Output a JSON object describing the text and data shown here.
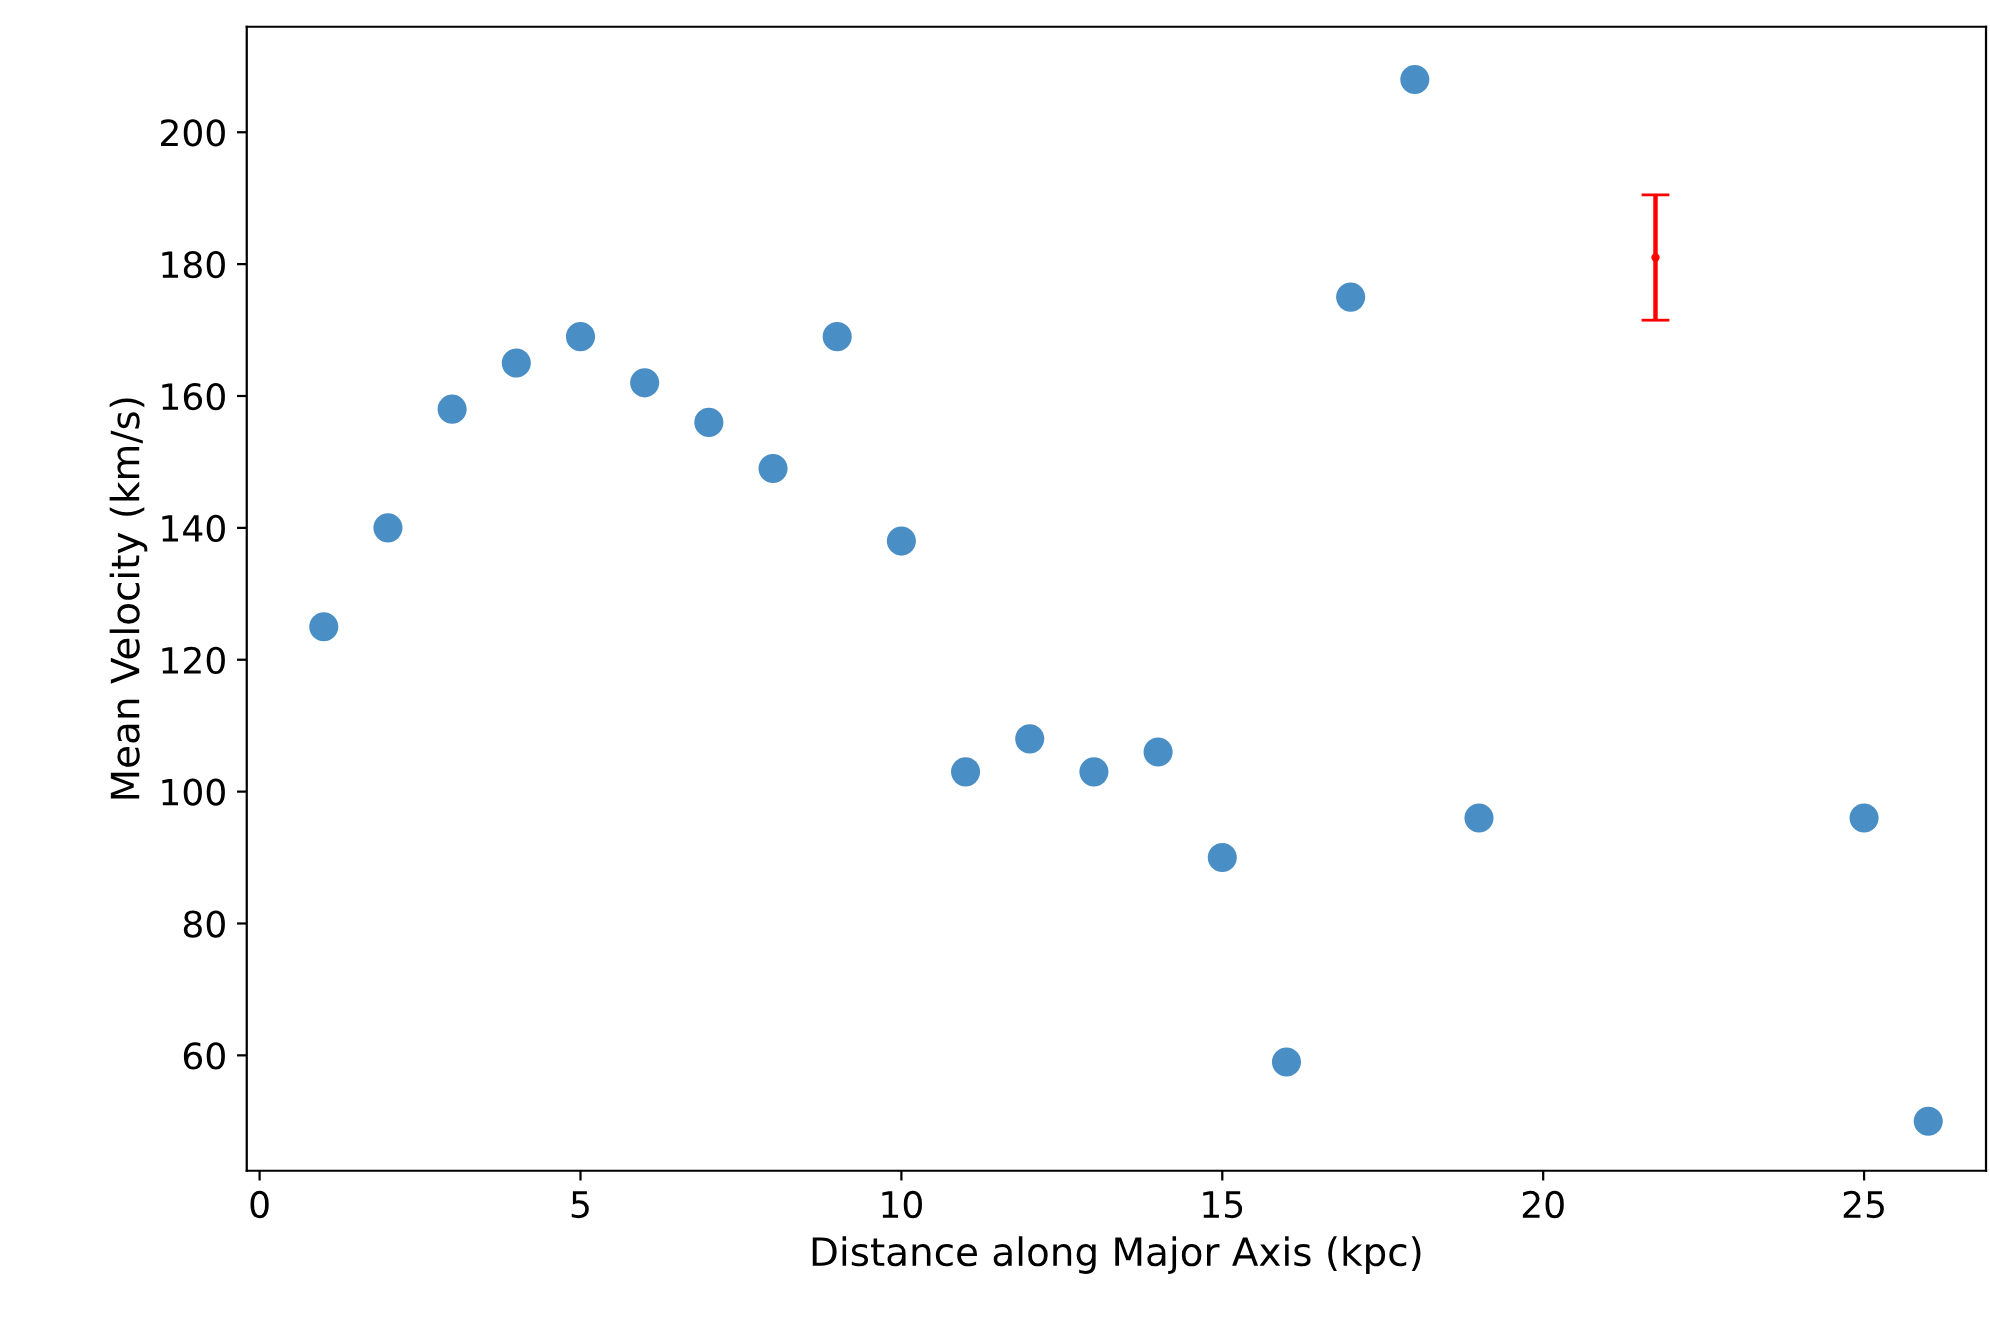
{
  "chart_data": {
    "type": "scatter",
    "xlabel": "Distance along Major Axis (kpc)",
    "ylabel": "Mean Velocity (km/s)",
    "xlim": [
      -0.2,
      26.9
    ],
    "ylim": [
      42.5,
      216
    ],
    "xticks": [
      0,
      5,
      10,
      15,
      20,
      25
    ],
    "yticks": [
      60,
      80,
      100,
      120,
      140,
      160,
      180,
      200
    ],
    "grid": false,
    "series": [
      {
        "color": "#3f88c1",
        "marker": "circle",
        "x": [
          1,
          2,
          3,
          4,
          5,
          6,
          7,
          8,
          9,
          10,
          11,
          12,
          13,
          14,
          15,
          16,
          17,
          18,
          19,
          25,
          26
        ],
        "values": [
          125,
          140,
          158,
          165,
          169,
          162,
          156,
          149,
          169,
          138,
          103,
          108,
          103,
          106,
          90,
          59,
          175,
          208,
          96,
          96,
          50
        ]
      },
      {
        "color": "#ff0000",
        "marker": "none",
        "x": [
          21.75
        ],
        "values": [
          181
        ],
        "errors": [
          9.5
        ]
      }
    ]
  }
}
